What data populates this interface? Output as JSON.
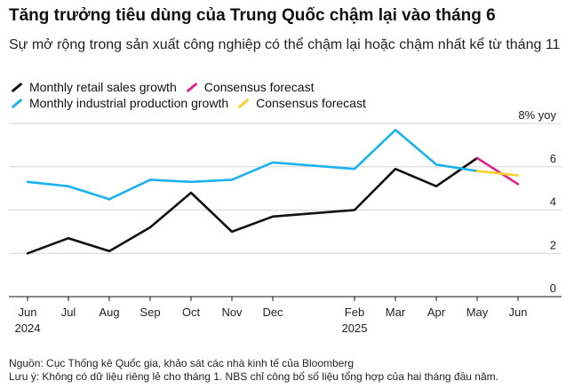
{
  "title": "Tăng trưởng tiêu dùng của Trung Quốc chậm lại vào tháng 6",
  "subtitle": "Sự mở rộng trong sản xuất công nghiệp có thể chậm lại hoặc chậm nhất kể từ tháng 11",
  "legend": [
    {
      "label": "Monthly retail sales growth",
      "color": "#111111"
    },
    {
      "label": "Consensus forecast",
      "color": "#e0218a"
    },
    {
      "label": "Monthly industrial production growth",
      "color": "#1ab2f0"
    },
    {
      "label": "Consensus forecast",
      "color": "#f7d028"
    }
  ],
  "footnotes": {
    "source": "Nguồn: Cục Thống kê Quốc gia, khảo sát các nhà kinh tế của Bloomberg",
    "note": "Lưu ý: Không có dữ liệu riêng lẻ cho tháng 1. NBS chỉ công bố số liệu tổng hợp của hai tháng đầu năm."
  },
  "chart_data": {
    "type": "line",
    "unit_label": "8% yoy",
    "ylim": [
      0,
      8
    ],
    "yticks": [
      0,
      2,
      4,
      6
    ],
    "ytick_labels": [
      "0",
      "2",
      "4",
      "6"
    ],
    "grid": true,
    "x_months": [
      0,
      1,
      2,
      3,
      4,
      5,
      6,
      8,
      9,
      10,
      11,
      12
    ],
    "x_tick_labels": [
      "Jun",
      "Jul",
      "Aug",
      "Sep",
      "Oct",
      "Nov",
      "Dec",
      "Feb",
      "Mar",
      "Apr",
      "May",
      "Jun"
    ],
    "year_labels": [
      {
        "month": 0,
        "label": "2024"
      },
      {
        "month": 8,
        "label": "2025"
      }
    ],
    "series": [
      {
        "name": "Monthly retail sales growth",
        "color": "#111111",
        "x": [
          0,
          1,
          2,
          3,
          4,
          5,
          6,
          8,
          9,
          10,
          11
        ],
        "values": [
          2.0,
          2.7,
          2.1,
          3.2,
          4.8,
          3.0,
          3.7,
          4.0,
          5.9,
          5.1,
          6.4
        ]
      },
      {
        "name": "Consensus forecast",
        "color": "#e0218a",
        "x": [
          11,
          12
        ],
        "values": [
          6.4,
          5.2
        ]
      },
      {
        "name": "Monthly industrial production growth",
        "color": "#1ab2f0",
        "x": [
          0,
          1,
          2,
          3,
          4,
          5,
          6,
          8,
          9,
          10,
          11
        ],
        "values": [
          5.3,
          5.1,
          4.5,
          5.4,
          5.3,
          5.4,
          6.2,
          5.9,
          7.7,
          6.1,
          5.8
        ]
      },
      {
        "name": "Consensus forecast",
        "color": "#f7d028",
        "x": [
          11,
          12
        ],
        "values": [
          5.8,
          5.6
        ]
      }
    ]
  }
}
